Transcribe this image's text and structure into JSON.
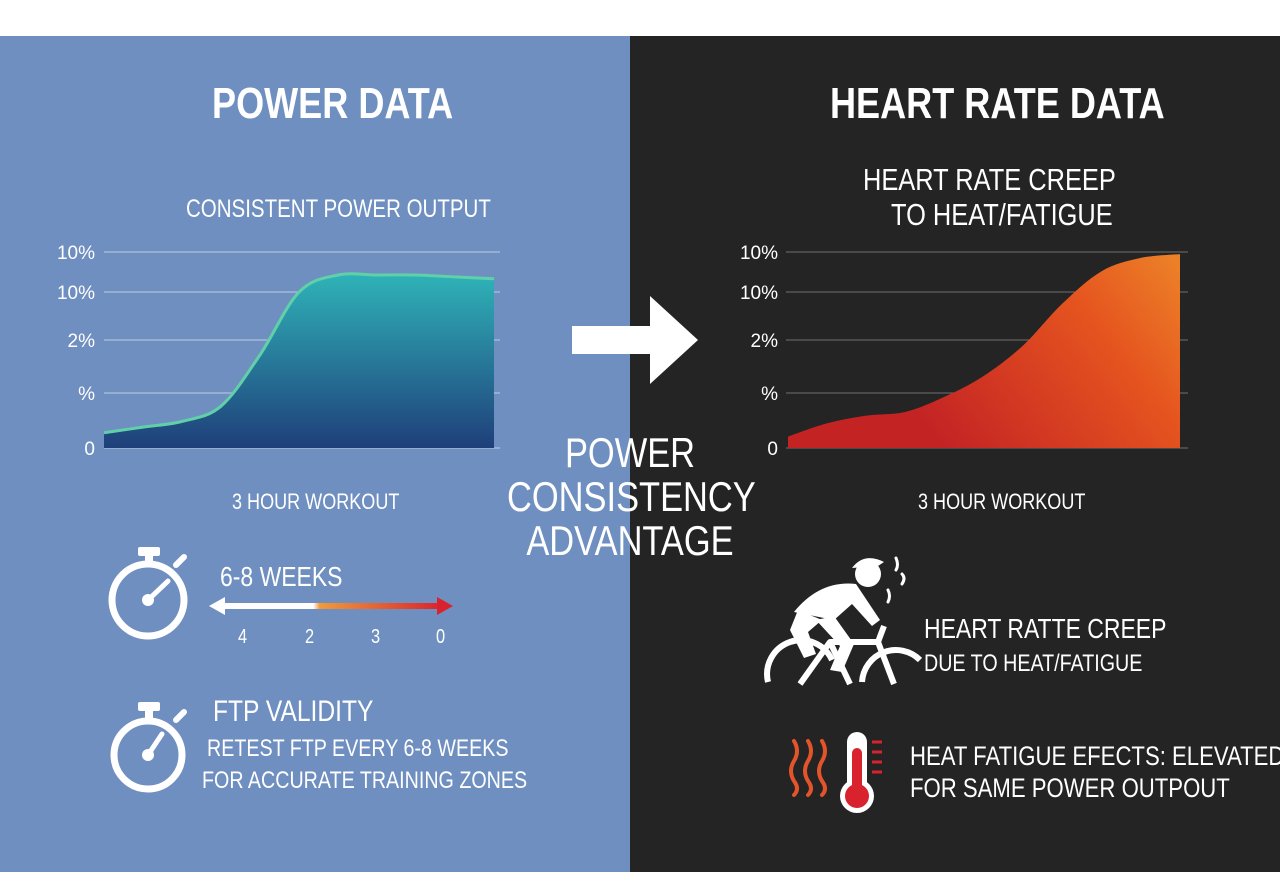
{
  "left_panel": {
    "title": "POWER DATA",
    "chart_title": "CONSISTENT POWER OUTPUT",
    "x_label": "3 HOUR WORKOUT",
    "weeks_label": "6-8 WEEKS",
    "scale_ticks": [
      "4",
      "2",
      "3",
      "0"
    ],
    "ftp_title": "FTP VALIDITY",
    "ftp_line1": "RETEST FTP EVERY 6-8 WEEKS",
    "ftp_line2": "FOR ACCURATE TRAINING ZONES"
  },
  "center": {
    "line1": "POWER",
    "line2": "CONSISTENCY",
    "line3": "ADVANTAGE"
  },
  "right_panel": {
    "title": "HEART RATE DATA",
    "chart_title_line1": "HEART RATE CREEP",
    "chart_title_line2": "TO HEAT/FATIGUE",
    "x_label": "3 HOUR WORKOUT",
    "creep_line1": "HEART RATTE CREEP",
    "creep_line2": "DUE TO HEAT/FATIGUE",
    "heat_line1": "HEAT FATIGUE EFECTS: ELEVATED HR",
    "heat_line2": "FOR SAME POWER OUTPOUT"
  },
  "colors": {
    "left_bg": "#6f8fc0",
    "right_bg": "#242424",
    "power_fill_top": "#2fb3b8",
    "power_fill_bottom": "#1f3f7a",
    "hr_fill_top": "#f0982c",
    "hr_fill_bottom": "#c42324"
  },
  "chart_data": [
    {
      "type": "area",
      "title": "CONSISTENT POWER OUTPUT",
      "xlabel": "3 HOUR WORKOUT",
      "y_tick_labels": [
        "10%",
        "10%",
        "2%",
        "%",
        "0"
      ],
      "x": [
        0,
        0.1,
        0.2,
        0.3,
        0.4,
        0.5,
        0.6,
        0.7,
        0.8,
        0.9,
        1.0
      ],
      "values": [
        0.08,
        0.11,
        0.14,
        0.22,
        0.49,
        0.82,
        0.91,
        0.91,
        0.91,
        0.9,
        0.89
      ],
      "ylim": [
        0,
        1
      ],
      "grid": true
    },
    {
      "type": "area",
      "title": "HEART RATE CREEP TO HEAT/FATIGUE",
      "xlabel": "3 HOUR WORKOUT",
      "y_tick_labels": [
        "10%",
        "10%",
        "2%",
        "%",
        "0"
      ],
      "x": [
        0,
        0.1,
        0.2,
        0.3,
        0.4,
        0.5,
        0.6,
        0.7,
        0.8,
        0.9,
        1.0
      ],
      "values": [
        0.06,
        0.13,
        0.17,
        0.19,
        0.27,
        0.38,
        0.54,
        0.76,
        0.93,
        1.0,
        1.02
      ],
      "ylim": [
        0,
        1
      ],
      "grid": true
    }
  ]
}
